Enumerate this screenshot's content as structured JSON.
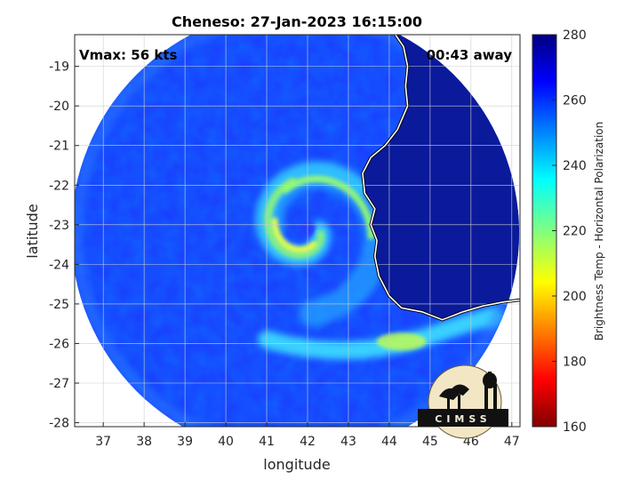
{
  "chart_data": {
    "type": "heatmap",
    "title": "Cheneso: 27-Jan-2023 16:15:00",
    "xlabel": "longitude",
    "ylabel": "latitude",
    "xlim": [
      36.3,
      47.2
    ],
    "ylim": [
      -28.1,
      -18.2
    ],
    "xticks": [
      37,
      38,
      39,
      40,
      41,
      42,
      43,
      44,
      45,
      46,
      47
    ],
    "yticks": [
      -19,
      -20,
      -21,
      -22,
      -23,
      -24,
      -25,
      -26,
      -27,
      -28
    ],
    "grid": true,
    "annotations": {
      "left": "Vmax: 56 kts",
      "right": "00:43 away"
    },
    "colorbar": {
      "label": "Brightness Temp - Horizontal Polarization",
      "range": [
        160,
        280
      ],
      "ticks": [
        280,
        260,
        240,
        220,
        200,
        180,
        160
      ],
      "colormap": "jet"
    },
    "storm_center": [
      42.0,
      -23.1
    ],
    "coastline": [
      [
        44.15,
        -18.2
      ],
      [
        44.35,
        -18.5
      ],
      [
        44.45,
        -19.0
      ],
      [
        44.4,
        -19.5
      ],
      [
        44.45,
        -20.0
      ],
      [
        44.2,
        -20.6
      ],
      [
        43.9,
        -21.0
      ],
      [
        43.55,
        -21.3
      ],
      [
        43.35,
        -21.7
      ],
      [
        43.4,
        -22.2
      ],
      [
        43.65,
        -22.6
      ],
      [
        43.55,
        -23.0
      ],
      [
        43.7,
        -23.4
      ],
      [
        43.65,
        -23.8
      ],
      [
        43.75,
        -24.3
      ],
      [
        44.0,
        -24.8
      ],
      [
        44.3,
        -25.1
      ],
      [
        44.8,
        -25.2
      ],
      [
        45.3,
        -25.4
      ],
      [
        45.8,
        -25.2
      ],
      [
        46.3,
        -25.05
      ],
      [
        46.8,
        -24.95
      ],
      [
        47.2,
        -24.9
      ]
    ],
    "features": [
      {
        "kind": "spiral_band",
        "description": "cyan/yellow spiral rainband around center",
        "min_temp": 205
      },
      {
        "kind": "land_warm",
        "description": "Madagascar land near 275 K",
        "value": 275
      },
      {
        "kind": "ocean_background",
        "value": 258
      },
      {
        "kind": "southern_band",
        "lat": -26,
        "lon_range": [
          41,
          46
        ],
        "value": 228
      }
    ]
  },
  "logo": {
    "text": "CIMSS"
  }
}
